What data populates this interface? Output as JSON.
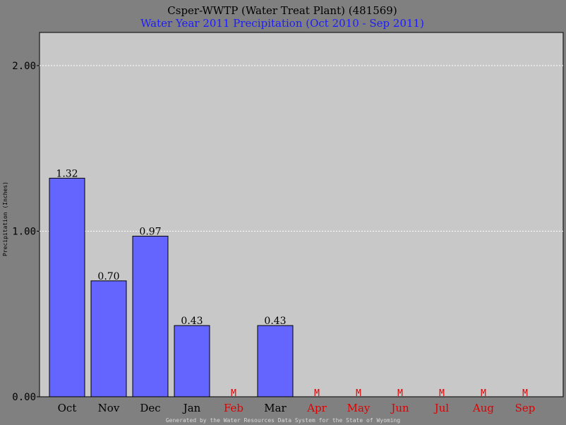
{
  "title": "Csper-WWTP (Water Treat Plant) (481569)",
  "subtitle": "Water Year 2011 Precipitation (Oct 2010 - Sep 2011)",
  "footer": "Generated by the Water Resources Data System for the State of Wyoming",
  "colors": {
    "background": "#808080",
    "plot_area": "#c8c8c8",
    "bar_fill": "#6464ff",
    "missing_label": "#e00000",
    "subtitle": "#1c1cff"
  },
  "chart_data": {
    "type": "bar",
    "title": "Csper-WWTP (Water Treat Plant) (481569)",
    "subtitle": "Water Year 2011 Precipitation (Oct 2010 - Sep 2011)",
    "xlabel": "",
    "ylabel": "Precipitation (Inches)",
    "ylim": [
      0,
      2.2
    ],
    "yticks": [
      "0.00",
      "1.00",
      "2.00"
    ],
    "grid": true,
    "categories": [
      "Oct",
      "Nov",
      "Dec",
      "Jan",
      "Feb",
      "Mar",
      "Apr",
      "May",
      "Jun",
      "Jul",
      "Aug",
      "Sep"
    ],
    "values": [
      1.32,
      0.7,
      0.97,
      0.43,
      null,
      0.43,
      null,
      null,
      null,
      null,
      null,
      null
    ],
    "value_labels": [
      "1.32",
      "0.70",
      "0.97",
      "0.43",
      "M",
      "0.43",
      "M",
      "M",
      "M",
      "M",
      "M",
      "M"
    ],
    "missing_marker": "M"
  }
}
